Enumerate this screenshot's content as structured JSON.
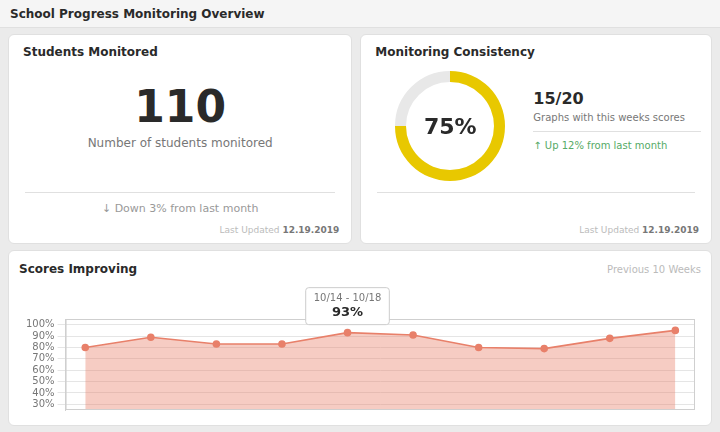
{
  "title": "School Progress Monitoring Overview",
  "chart_data": [
    {
      "type": "kpi",
      "title": "Students Monitored",
      "values": [
        110
      ],
      "subtitle": "Number of students monitored",
      "annotations": [
        "↓ Down 3% from last month",
        "Last Updated",
        "12.19.2019"
      ]
    },
    {
      "type": "gauge",
      "title": "Monitoring Consistency",
      "values": [
        75
      ],
      "value_labels": [
        "75%"
      ],
      "ylim": [
        0,
        100
      ],
      "color": "#e8c800",
      "annotations": [
        "15/20",
        "Graphs with this weeks scores",
        "↑ Up 12% from last month",
        "Last Updated",
        "12.19.2019"
      ]
    },
    {
      "type": "line",
      "title": "Scores Improving",
      "x": [
        0,
        1,
        2,
        3,
        4,
        5,
        6,
        7,
        8,
        9
      ],
      "values": [
        80,
        89,
        83,
        83,
        93,
        91,
        80,
        79,
        88,
        95
      ],
      "color": "#e8806a",
      "marker": "circle",
      "xlim": [
        -0.3,
        9.3
      ],
      "ylim": [
        25,
        105
      ],
      "yticks": [
        {
          "value": 30,
          "label": "30%"
        },
        {
          "value": 40,
          "label": "40%"
        },
        {
          "value": 50,
          "label": "50%"
        },
        {
          "value": 60,
          "label": "60%"
        },
        {
          "value": 70,
          "label": "70%"
        },
        {
          "value": 80,
          "label": "80%"
        },
        {
          "value": 90,
          "label": "90%"
        },
        {
          "value": 100,
          "label": "100%"
        }
      ],
      "grid": true,
      "tick_labels": "y",
      "annotations": [
        {
          "text": "Previous 10 Weeks"
        },
        {
          "text": "10/14 - 10/18",
          "x": 4,
          "y": 93
        },
        {
          "text": "93%",
          "x": 4,
          "y": 93
        }
      ]
    }
  ]
}
